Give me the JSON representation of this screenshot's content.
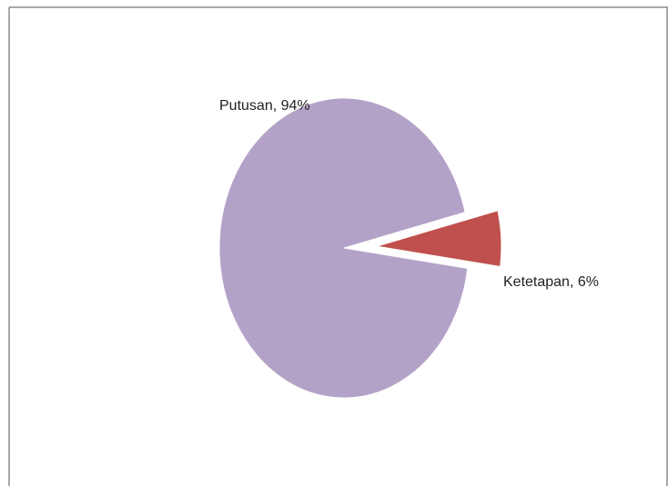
{
  "chart_data": {
    "type": "pie",
    "title": "",
    "categories": [
      "Putusan",
      "Ketetapan"
    ],
    "values": [
      94,
      6
    ],
    "labels": [
      "Putusan, 94%",
      "Ketetapan, 6%"
    ],
    "colors": [
      "#b3a2c8",
      "#c0504d"
    ],
    "exploded": [
      false,
      true
    ],
    "legend": "none"
  }
}
